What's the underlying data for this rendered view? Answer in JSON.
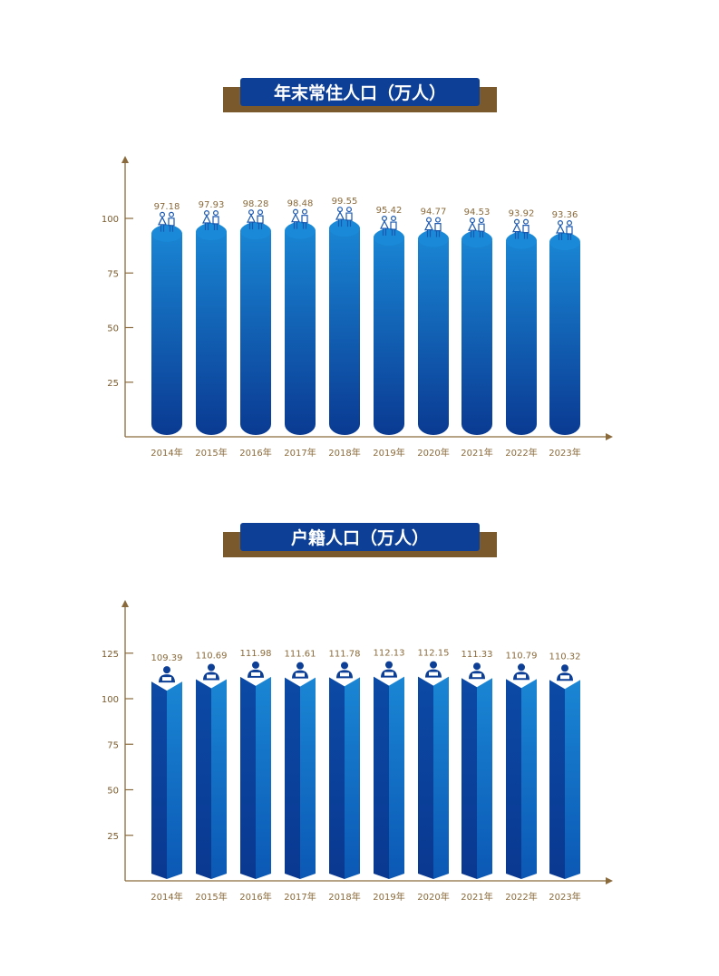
{
  "colors": {
    "axis": "#8a6a3a",
    "banner": "#0d3f96",
    "banner_back": "#7a5a2c",
    "bar_light": "#1a86d4",
    "bar_dark": "#0a3d94",
    "label": "#8a6a3a"
  },
  "chart_data": [
    {
      "type": "bar",
      "title": "年末常住人口（万人）",
      "categories": [
        "2014年",
        "2015年",
        "2016年",
        "2017年",
        "2018年",
        "2019年",
        "2020年",
        "2021年",
        "2022年",
        "2023年"
      ],
      "values": [
        97.18,
        97.93,
        98.28,
        98.48,
        99.55,
        95.42,
        94.77,
        94.53,
        93.92,
        93.36
      ],
      "yticks": [
        25,
        50,
        75,
        100
      ],
      "ylim": [
        0,
        125
      ],
      "bar_style": "cylinder",
      "icon": "couple-icon",
      "grid": false
    },
    {
      "type": "bar",
      "title": "户籍人口（万人）",
      "categories": [
        "2014年",
        "2015年",
        "2016年",
        "2017年",
        "2018年",
        "2019年",
        "2020年",
        "2021年",
        "2022年",
        "2023年"
      ],
      "values": [
        109.39,
        110.69,
        111.98,
        111.61,
        111.78,
        112.13,
        112.15,
        111.33,
        110.79,
        110.32
      ],
      "yticks": [
        25,
        50,
        75,
        100,
        125
      ],
      "ylim": [
        0,
        155
      ],
      "bar_style": "prism",
      "icon": "person-at-desk-icon",
      "grid": false
    }
  ]
}
